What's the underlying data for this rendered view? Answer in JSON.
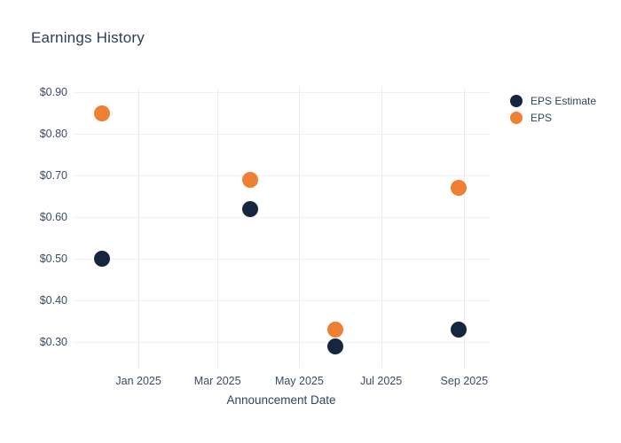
{
  "chart_data": {
    "type": "scatter",
    "title": "Earnings History",
    "xlabel": "Announcement Date",
    "ylabel": "",
    "grid": true,
    "legend_position": "right",
    "ylim": [
      0.238,
      0.911
    ],
    "xlim": [
      "2024-11-13",
      "2025-09-20"
    ],
    "y_ticks": [
      {
        "value": 0.9,
        "label": "$0.90"
      },
      {
        "value": 0.8,
        "label": "$0.80"
      },
      {
        "value": 0.7,
        "label": "$0.70"
      },
      {
        "value": 0.6,
        "label": "$0.60"
      },
      {
        "value": 0.5,
        "label": "$0.50"
      },
      {
        "value": 0.4,
        "label": "$0.40"
      },
      {
        "value": 0.3,
        "label": "$0.30"
      }
    ],
    "x_ticks": [
      {
        "date": "2025-01-01",
        "label": "Jan 2025"
      },
      {
        "date": "2025-03-01",
        "label": "Mar 2025"
      },
      {
        "date": "2025-05-01",
        "label": "May 2025"
      },
      {
        "date": "2025-07-01",
        "label": "Jul 2025"
      },
      {
        "date": "2025-09-01",
        "label": "Sep 2025"
      }
    ],
    "series": [
      {
        "name": "EPS Estimate",
        "color": "#17263f",
        "points": [
          {
            "date": "2024-12-05",
            "value": 0.5
          },
          {
            "date": "2025-03-25",
            "value": 0.62
          },
          {
            "date": "2025-05-28",
            "value": 0.29
          },
          {
            "date": "2025-08-28",
            "value": 0.33
          }
        ]
      },
      {
        "name": "EPS",
        "color": "#ef7f32",
        "points": [
          {
            "date": "2024-12-05",
            "value": 0.85
          },
          {
            "date": "2025-03-25",
            "value": 0.69
          },
          {
            "date": "2025-05-28",
            "value": 0.33
          },
          {
            "date": "2025-08-28",
            "value": 0.67
          }
        ]
      }
    ]
  }
}
